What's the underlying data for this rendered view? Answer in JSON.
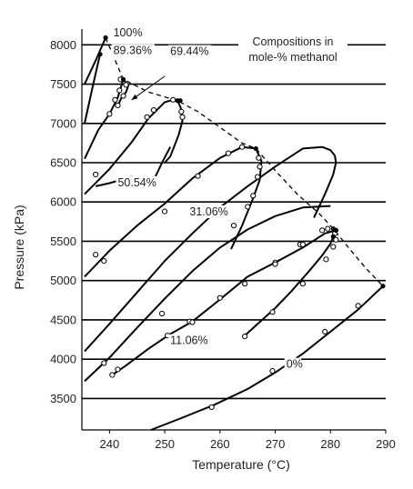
{
  "chart_data": {
    "type": "line",
    "title": "",
    "xlabel": "Temperature (°C)",
    "ylabel": "Pressure (kPa)",
    "xlim": [
      235,
      290
    ],
    "ylim": [
      3100,
      8200
    ],
    "xticks": [
      240,
      250,
      260,
      270,
      280,
      290
    ],
    "yticks": [
      3500,
      4000,
      4500,
      5000,
      5500,
      6000,
      6500,
      7000,
      7500,
      8000
    ],
    "grid": "horizontal",
    "legend": {
      "position": "top-right",
      "lines": [
        "Compositions in",
        "mole-% methanol"
      ]
    },
    "critical_locus_style": "dashed",
    "series": [
      {
        "name": "100%",
        "label_at": [
          240.7,
          8110
        ],
        "critical_point": [
          239.3,
          8090
        ],
        "x": [
          235.5,
          237.5,
          239.3
        ],
        "y": [
          7500,
          7800,
          8090
        ],
        "markers": []
      },
      {
        "name": "89.36%",
        "label_at": [
          240.7,
          7880
        ],
        "critical_point": [
          238.3,
          7880
        ],
        "x": [
          235.5,
          237.0,
          238.3
        ],
        "y": [
          7000,
          7480,
          7880
        ],
        "markers": []
      },
      {
        "name": "",
        "critical_point": [
          242.5,
          7560
        ],
        "x": [
          235.5,
          238.0,
          240.0,
          241.5,
          242.5,
          243.4,
          243.0,
          242.2,
          241.5
        ],
        "y": [
          6550,
          6920,
          7120,
          7330,
          7560,
          7480,
          7400,
          7330,
          7230
        ],
        "markers": [
          [
            240.0,
            7120
          ],
          [
            241.0,
            7300
          ],
          [
            241.8,
            7420
          ],
          [
            242.0,
            7560
          ],
          [
            243.0,
            7490
          ],
          [
            242.5,
            7350
          ],
          [
            241.5,
            7230
          ]
        ]
      },
      {
        "name": "69.44%",
        "label_at": [
          251.0,
          7870
        ],
        "critical_point": [
          252.3,
          7290
        ],
        "x": [
          235.5,
          240.0,
          244.0,
          247.0,
          250.0,
          251.5,
          252.3,
          252.9,
          253.2,
          252.5,
          251.0,
          250.0
        ],
        "y": [
          6100,
          6420,
          6760,
          7060,
          7270,
          7300,
          7290,
          7200,
          7030,
          6850,
          6580,
          6500
        ],
        "markers": [
          [
            237.5,
            6350
          ],
          [
            246.8,
            7080
          ],
          [
            248.0,
            7170
          ],
          [
            251.5,
            7300
          ],
          [
            253.2,
            7080
          ],
          [
            253.0,
            7150
          ]
        ]
      },
      {
        "name": "50.54%",
        "label_at": [
          241.5,
          6200
        ],
        "critical_point": [
          252.8,
          7290
        ],
        "x": [
          237.5,
          240.0,
          244.0,
          247.5,
          249.5,
          251.0
        ],
        "y": [
          6200,
          6240,
          6320,
          6200,
          6500,
          6700
        ],
        "markers": [
          [
            247.5,
            6200
          ]
        ]
      },
      {
        "name": "31.06%",
        "label_at": [
          254.5,
          5830
        ],
        "critical_point": [
          266.5,
          6680
        ],
        "x": [
          235.5,
          240.0,
          245.0,
          250.0,
          255.0,
          260.0,
          264.0,
          266.5,
          267.5,
          267.2,
          266.0,
          264.0,
          262.0
        ],
        "y": [
          5050,
          5380,
          5700,
          5980,
          6300,
          6560,
          6700,
          6680,
          6520,
          6280,
          6050,
          5700,
          5400
        ],
        "markers": [
          [
            237.5,
            5330
          ],
          [
            250.0,
            5880
          ],
          [
            256.0,
            6330
          ],
          [
            261.5,
            6620
          ],
          [
            264.0,
            6700
          ],
          [
            267.0,
            6560
          ],
          [
            267.2,
            6450
          ],
          [
            266.8,
            6320
          ],
          [
            266.0,
            6080
          ],
          [
            265.0,
            5940
          ],
          [
            262.5,
            5700
          ]
        ]
      },
      {
        "name": "",
        "critical_point": [
          280.5,
          5660
        ],
        "x": [
          235.5,
          240.0,
          245.0,
          250.0,
          255.0,
          260.0,
          265.0,
          270.0,
          275.0,
          278.5,
          280.0,
          280.8,
          281.0,
          280.5,
          279.0,
          277.0
        ],
        "y": [
          4100,
          4450,
          4850,
          5250,
          5600,
          5930,
          6200,
          6450,
          6680,
          6700,
          6660,
          6590,
          6500,
          6350,
          6100,
          5800
        ],
        "markers": [
          [
            239.0,
            5250
          ],
          [
            270.0,
            5230
          ],
          [
            274.5,
            5460
          ],
          [
            278.5,
            5640
          ],
          [
            279.5,
            5660
          ],
          [
            280.8,
            5600
          ],
          [
            281.0,
            5520
          ],
          [
            280.5,
            5430
          ],
          [
            279.2,
            5270
          ]
        ]
      },
      {
        "name": "11.06%",
        "label_at": [
          251.0,
          4190
        ],
        "critical_point": [
          281.0,
          5640
        ],
        "x": [
          235.5,
          240.0,
          245.0,
          250.0,
          255.0,
          260.0,
          265.0,
          270.0,
          275.0,
          280.0
        ],
        "y": [
          3720,
          4020,
          4400,
          4770,
          5120,
          5420,
          5650,
          5820,
          5930,
          5950
        ],
        "markers": [
          [
            239.0,
            3950
          ],
          [
            249.5,
            4580
          ],
          [
            254.5,
            4480
          ]
        ]
      },
      {
        "name": "",
        "critical_point": [
          281.0,
          5640
        ],
        "x": [
          240.5,
          243.0,
          247.0,
          251.0,
          255.0,
          260.0,
          265.0,
          270.0,
          275.0,
          279.0,
          281.0
        ],
        "y": [
          3800,
          3920,
          4130,
          4320,
          4480,
          4760,
          5050,
          5230,
          5420,
          5600,
          5640
        ],
        "markers": [
          [
            240.5,
            3800
          ],
          [
            241.5,
            3870
          ],
          [
            250.5,
            4300
          ],
          [
            255.0,
            4470
          ],
          [
            260.0,
            4780
          ],
          [
            264.5,
            4960
          ],
          [
            270.0,
            5210
          ],
          [
            275.0,
            5460
          ]
        ]
      },
      {
        "name": "",
        "critical_point": [
          280.5,
          5560
        ],
        "x": [
          264.5,
          267.0,
          270.0,
          273.0,
          276.0,
          278.5,
          280.0,
          280.5
        ],
        "y": [
          4300,
          4460,
          4650,
          4870,
          5110,
          5320,
          5470,
          5560
        ],
        "markers": [
          [
            264.5,
            4290
          ],
          [
            269.5,
            4600
          ],
          [
            275.0,
            4960
          ]
        ]
      },
      {
        "name": "0%",
        "label_at": [
          272.0,
          3890
        ],
        "critical_point": [
          289.5,
          4930
        ],
        "x": [
          247.5,
          253.0,
          259.0,
          265.0,
          270.0,
          275.0,
          280.0,
          285.0,
          289.5
        ],
        "y": [
          3100,
          3250,
          3420,
          3620,
          3830,
          4070,
          4350,
          4630,
          4930
        ],
        "markers": [
          [
            258.5,
            3390
          ],
          [
            269.5,
            3850
          ],
          [
            279.0,
            4350
          ],
          [
            285.0,
            4680
          ]
        ]
      }
    ],
    "critical_locus": {
      "x": [
        239.3,
        242.5,
        247.0,
        252.3,
        256.0,
        260.0,
        264.0,
        266.5,
        270.0,
        274.0,
        278.0,
        280.5,
        283.5,
        286.5,
        289.5
      ],
      "y": [
        8090,
        7560,
        7400,
        7290,
        7150,
        6950,
        6750,
        6680,
        6400,
        6100,
        5850,
        5660,
        5400,
        5150,
        4930
      ]
    },
    "arrow": {
      "label": "89.36%",
      "from": [
        250.0,
        7600
      ],
      "to": [
        244.0,
        7300
      ]
    }
  }
}
